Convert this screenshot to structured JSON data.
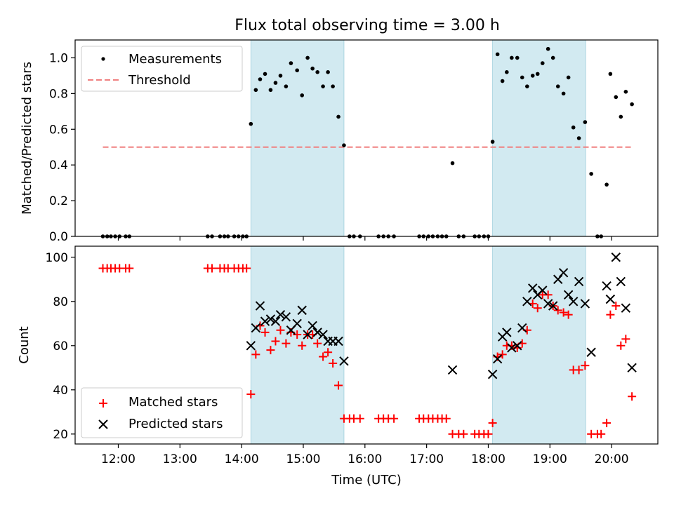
{
  "chart_data": [
    {
      "type": "scatter",
      "title": "Flux total observing time = 3.00 h",
      "xlabel": "",
      "ylabel": "Matched/Predicted stars",
      "xlim": [
        11.3,
        20.75
      ],
      "ylim": [
        0,
        1.1
      ],
      "yticks": [
        0.0,
        0.2,
        0.4,
        0.6,
        0.8,
        1.0
      ],
      "ytick_labels": [
        "0.0",
        "0.2",
        "0.4",
        "0.6",
        "0.8",
        "1.0"
      ],
      "legend": {
        "location": "top-left",
        "entries": [
          "Measurements",
          "Threshold"
        ]
      },
      "shaded_intervals": [
        [
          14.15,
          15.66
        ],
        [
          18.07,
          19.58
        ]
      ],
      "threshold": {
        "name": "Threshold",
        "value": 0.5,
        "x_range": [
          11.75,
          20.33
        ],
        "color": "#f08080"
      },
      "series": [
        {
          "name": "Measurements",
          "color": "#000000",
          "points": [
            [
              11.75,
              0
            ],
            [
              11.82,
              0
            ],
            [
              11.88,
              0
            ],
            [
              11.95,
              0
            ],
            [
              12.02,
              0
            ],
            [
              12.12,
              0
            ],
            [
              12.18,
              0
            ],
            [
              13.45,
              0
            ],
            [
              13.52,
              0
            ],
            [
              13.65,
              0
            ],
            [
              13.72,
              0
            ],
            [
              13.78,
              0
            ],
            [
              13.88,
              0
            ],
            [
              13.95,
              0
            ],
            [
              14.02,
              0
            ],
            [
              14.08,
              0
            ],
            [
              14.15,
              0.63
            ],
            [
              14.23,
              0.82
            ],
            [
              14.3,
              0.88
            ],
            [
              14.38,
              0.91
            ],
            [
              14.47,
              0.82
            ],
            [
              14.55,
              0.86
            ],
            [
              14.63,
              0.9
            ],
            [
              14.72,
              0.84
            ],
            [
              14.8,
              0.97
            ],
            [
              14.9,
              0.93
            ],
            [
              14.98,
              0.79
            ],
            [
              15.07,
              1.0
            ],
            [
              15.15,
              0.94
            ],
            [
              15.23,
              0.92
            ],
            [
              15.32,
              0.84
            ],
            [
              15.4,
              0.92
            ],
            [
              15.48,
              0.84
            ],
            [
              15.57,
              0.67
            ],
            [
              15.66,
              0.51
            ],
            [
              15.75,
              0
            ],
            [
              15.82,
              0
            ],
            [
              15.92,
              0
            ],
            [
              16.22,
              0
            ],
            [
              16.3,
              0
            ],
            [
              16.38,
              0
            ],
            [
              16.47,
              0
            ],
            [
              16.88,
              0
            ],
            [
              16.95,
              0
            ],
            [
              17.03,
              0
            ],
            [
              17.1,
              0
            ],
            [
              17.18,
              0
            ],
            [
              17.25,
              0
            ],
            [
              17.32,
              0
            ],
            [
              17.42,
              0.41
            ],
            [
              17.52,
              0
            ],
            [
              17.6,
              0
            ],
            [
              17.78,
              0
            ],
            [
              17.85,
              0
            ],
            [
              17.93,
              0
            ],
            [
              18.0,
              0
            ],
            [
              18.07,
              0.53
            ],
            [
              18.15,
              1.02
            ],
            [
              18.23,
              0.87
            ],
            [
              18.3,
              0.92
            ],
            [
              18.38,
              1.0
            ],
            [
              18.47,
              1.0
            ],
            [
              18.55,
              0.89
            ],
            [
              18.63,
              0.84
            ],
            [
              18.72,
              0.9
            ],
            [
              18.8,
              0.91
            ],
            [
              18.88,
              0.97
            ],
            [
              18.97,
              1.05
            ],
            [
              19.05,
              1.0
            ],
            [
              19.13,
              0.84
            ],
            [
              19.22,
              0.8
            ],
            [
              19.3,
              0.89
            ],
            [
              19.38,
              0.61
            ],
            [
              19.47,
              0.55
            ],
            [
              19.57,
              0.64
            ],
            [
              19.67,
              0.35
            ],
            [
              19.77,
              0
            ],
            [
              19.83,
              0
            ],
            [
              19.92,
              0.29
            ],
            [
              19.98,
              0.91
            ],
            [
              20.07,
              0.78
            ],
            [
              20.15,
              0.67
            ],
            [
              20.23,
              0.81
            ],
            [
              20.33,
              0.74
            ]
          ]
        }
      ]
    },
    {
      "type": "scatter",
      "title": "",
      "xlabel": "Time (UTC)",
      "ylabel": "Count",
      "xlim": [
        11.3,
        20.75
      ],
      "ylim": [
        15.5,
        105
      ],
      "yticks": [
        20,
        40,
        60,
        80,
        100
      ],
      "ytick_labels": [
        "20",
        "40",
        "60",
        "80",
        "100"
      ],
      "xticks": [
        12,
        13,
        14,
        15,
        16,
        17,
        18,
        19,
        20
      ],
      "xtick_labels": [
        "12:00",
        "13:00",
        "14:00",
        "15:00",
        "16:00",
        "17:00",
        "18:00",
        "19:00",
        "20:00"
      ],
      "legend": {
        "location": "bottom-left",
        "entries": [
          "Matched stars",
          "Predicted stars"
        ]
      },
      "shaded_intervals": [
        [
          14.15,
          15.66
        ],
        [
          18.07,
          19.58
        ]
      ],
      "series": [
        {
          "name": "Matched stars",
          "marker": "plus",
          "color": "#ff0000",
          "points": [
            [
              11.75,
              95
            ],
            [
              11.82,
              95
            ],
            [
              11.88,
              95
            ],
            [
              11.95,
              95
            ],
            [
              12.02,
              95
            ],
            [
              12.12,
              95
            ],
            [
              12.18,
              95
            ],
            [
              13.45,
              95
            ],
            [
              13.52,
              95
            ],
            [
              13.65,
              95
            ],
            [
              13.72,
              95
            ],
            [
              13.78,
              95
            ],
            [
              13.88,
              95
            ],
            [
              13.95,
              95
            ],
            [
              14.02,
              95
            ],
            [
              14.08,
              95
            ],
            [
              14.15,
              38
            ],
            [
              14.23,
              56
            ],
            [
              14.3,
              69
            ],
            [
              14.38,
              66
            ],
            [
              14.47,
              58
            ],
            [
              14.55,
              62
            ],
            [
              14.63,
              67
            ],
            [
              14.72,
              61
            ],
            [
              14.8,
              66
            ],
            [
              14.9,
              65
            ],
            [
              14.98,
              60
            ],
            [
              15.07,
              65
            ],
            [
              15.15,
              65
            ],
            [
              15.23,
              61
            ],
            [
              15.32,
              55
            ],
            [
              15.4,
              57
            ],
            [
              15.48,
              52
            ],
            [
              15.57,
              42
            ],
            [
              15.66,
              27
            ],
            [
              15.75,
              27
            ],
            [
              15.82,
              27
            ],
            [
              15.92,
              27
            ],
            [
              16.22,
              27
            ],
            [
              16.3,
              27
            ],
            [
              16.38,
              27
            ],
            [
              16.47,
              27
            ],
            [
              16.88,
              27
            ],
            [
              16.95,
              27
            ],
            [
              17.03,
              27
            ],
            [
              17.1,
              27
            ],
            [
              17.18,
              27
            ],
            [
              17.25,
              27
            ],
            [
              17.32,
              27
            ],
            [
              17.42,
              20
            ],
            [
              17.52,
              20
            ],
            [
              17.6,
              20
            ],
            [
              17.78,
              20
            ],
            [
              17.85,
              20
            ],
            [
              17.93,
              20
            ],
            [
              18.0,
              20
            ],
            [
              18.07,
              25
            ],
            [
              18.15,
              55
            ],
            [
              18.23,
              56
            ],
            [
              18.3,
              60
            ],
            [
              18.38,
              60
            ],
            [
              18.47,
              59
            ],
            [
              18.55,
              61
            ],
            [
              18.63,
              67
            ],
            [
              18.72,
              79
            ],
            [
              18.8,
              77
            ],
            [
              18.88,
              83
            ],
            [
              18.97,
              83
            ],
            [
              19.05,
              78
            ],
            [
              19.13,
              76
            ],
            [
              19.22,
              75
            ],
            [
              19.3,
              74
            ],
            [
              19.38,
              49
            ],
            [
              19.47,
              49
            ],
            [
              19.57,
              51
            ],
            [
              19.67,
              20
            ],
            [
              19.77,
              20
            ],
            [
              19.83,
              20
            ],
            [
              19.92,
              25
            ],
            [
              19.98,
              74
            ],
            [
              20.07,
              78
            ],
            [
              20.15,
              60
            ],
            [
              20.23,
              63
            ],
            [
              20.33,
              37
            ]
          ]
        },
        {
          "name": "Predicted stars",
          "marker": "x",
          "color": "#000000",
          "points": [
            [
              14.15,
              60
            ],
            [
              14.23,
              68
            ],
            [
              14.3,
              78
            ],
            [
              14.38,
              71
            ],
            [
              14.47,
              72
            ],
            [
              14.55,
              71
            ],
            [
              14.63,
              74
            ],
            [
              14.72,
              73
            ],
            [
              14.8,
              67
            ],
            [
              14.9,
              70
            ],
            [
              14.98,
              76
            ],
            [
              15.07,
              65
            ],
            [
              15.15,
              69
            ],
            [
              15.23,
              66
            ],
            [
              15.32,
              65
            ],
            [
              15.4,
              62
            ],
            [
              15.48,
              62
            ],
            [
              15.57,
              62
            ],
            [
              15.66,
              53
            ],
            [
              17.42,
              49
            ],
            [
              18.07,
              47
            ],
            [
              18.15,
              54
            ],
            [
              18.23,
              64
            ],
            [
              18.3,
              66
            ],
            [
              18.38,
              59
            ],
            [
              18.47,
              60
            ],
            [
              18.55,
              68
            ],
            [
              18.63,
              80
            ],
            [
              18.72,
              86
            ],
            [
              18.8,
              83
            ],
            [
              18.88,
              85
            ],
            [
              18.97,
              79
            ],
            [
              19.05,
              78
            ],
            [
              19.13,
              90
            ],
            [
              19.22,
              93
            ],
            [
              19.3,
              83
            ],
            [
              19.38,
              80
            ],
            [
              19.47,
              89
            ],
            [
              19.57,
              79
            ],
            [
              19.67,
              57
            ],
            [
              19.92,
              87
            ],
            [
              19.98,
              81
            ],
            [
              20.07,
              100
            ],
            [
              20.15,
              89
            ],
            [
              20.23,
              77
            ],
            [
              20.33,
              50
            ]
          ]
        }
      ]
    }
  ]
}
